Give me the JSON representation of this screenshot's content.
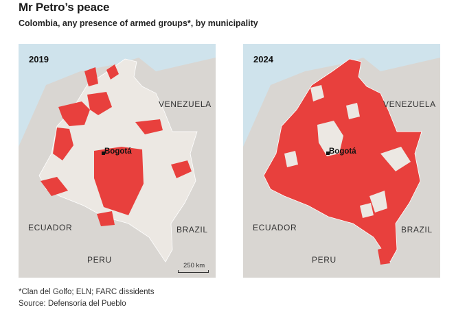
{
  "title": "Mr Petro’s peace",
  "subtitle": "Colombia, any presence of armed groups*, by municipality",
  "panels": [
    {
      "year": "2019",
      "country_labels": {
        "venezuela": "VENEZUELA",
        "ecuador": "ECUADOR",
        "brazil": "BRAZIL",
        "peru": "PERU"
      },
      "city": "Bogotá",
      "scale": "250 km"
    },
    {
      "year": "2024",
      "country_labels": {
        "venezuela": "VENEZUELA",
        "ecuador": "ECUADOR",
        "brazil": "BRAZIL",
        "peru": "PERU"
      },
      "city": "Bogotá"
    }
  ],
  "footnote": "*Clan del Golfo; ELN; FARC dissidents",
  "source": "Source: Defensoría del Pueblo",
  "colors": {
    "sea": "#cfe3ec",
    "land": "#d9d6d2",
    "colombia": "#ece8e3",
    "armed_presence": "#e8403d"
  }
}
